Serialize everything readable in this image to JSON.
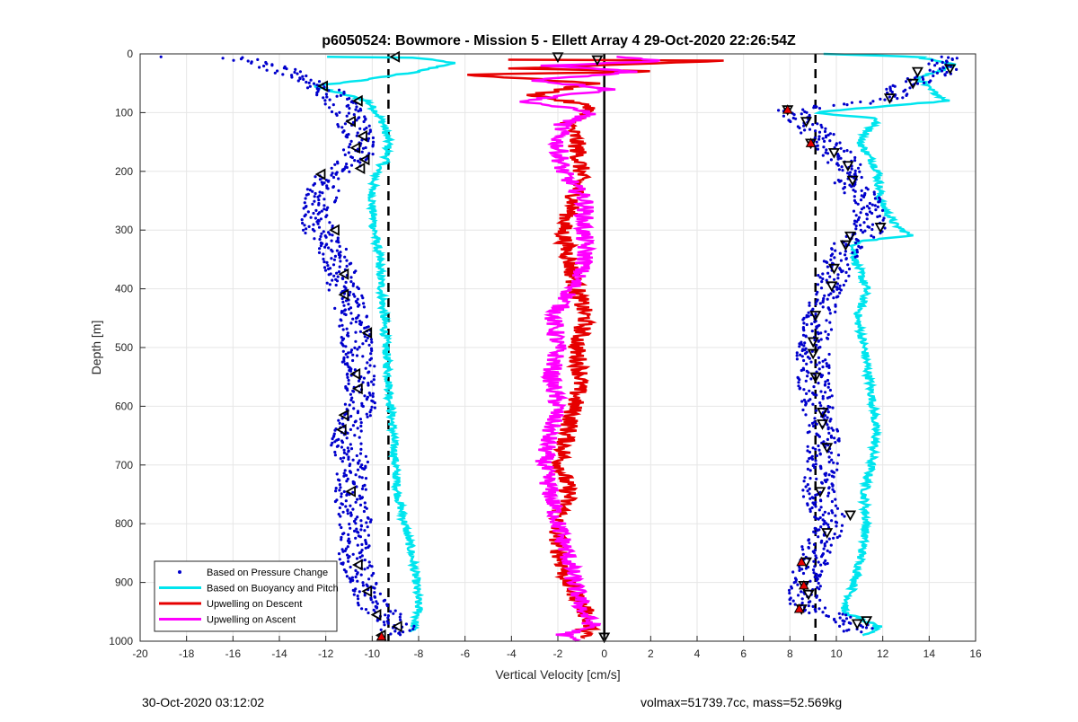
{
  "chart_data": {
    "type": "scatter",
    "title": "p6050524: Bowmore - Mission 5 - Ellett Array 4 29-Oct-2020 22:26:54Z",
    "xlabel": "Vertical Velocity [cm/s]",
    "ylabel": "Depth [m]",
    "xlim": [
      -20,
      16
    ],
    "ylim": [
      1000,
      0
    ],
    "y_reversed": true,
    "grid": true,
    "legend_position": "bottom-left",
    "xticks": [
      -20,
      -18,
      -16,
      -14,
      -12,
      -10,
      -8,
      -6,
      -4,
      -2,
      0,
      2,
      4,
      6,
      8,
      10,
      12,
      14,
      16
    ],
    "yticks": [
      0,
      100,
      200,
      300,
      400,
      500,
      600,
      700,
      800,
      900,
      1000
    ],
    "reference_lines": [
      {
        "style": "dashed",
        "x": -9.3
      },
      {
        "style": "solid",
        "x": 0
      },
      {
        "style": "dashed",
        "x": 9.1
      }
    ],
    "series": [
      {
        "name": "Based on Pressure Change",
        "color": "#0000CC",
        "marker": "dot",
        "descent": [
          [
            -19.5,
            5
          ],
          [
            -16,
            5
          ],
          [
            -14.5,
            20
          ],
          [
            -13,
            40
          ],
          [
            -12,
            60
          ],
          [
            -11.2,
            90
          ],
          [
            -10.8,
            120
          ],
          [
            -10.6,
            150
          ],
          [
            -10.7,
            180
          ],
          [
            -12,
            210
          ],
          [
            -12.2,
            250
          ],
          [
            -12.4,
            300
          ],
          [
            -11.5,
            350
          ],
          [
            -11.2,
            400
          ],
          [
            -10.8,
            450
          ],
          [
            -10.6,
            500
          ],
          [
            -10.6,
            550
          ],
          [
            -10.5,
            600
          ],
          [
            -11.2,
            650
          ],
          [
            -10.8,
            700
          ],
          [
            -11.0,
            750
          ],
          [
            -10.7,
            800
          ],
          [
            -10.8,
            850
          ],
          [
            -10.5,
            900
          ],
          [
            -10.0,
            940
          ],
          [
            -8.7,
            975
          ],
          [
            -9.5,
            990
          ]
        ],
        "ascent": [
          [
            14.5,
            5
          ],
          [
            14.8,
            25
          ],
          [
            13.2,
            50
          ],
          [
            12.0,
            80
          ],
          [
            8,
            95
          ],
          [
            8.8,
            120
          ],
          [
            9.5,
            150
          ],
          [
            10.0,
            170
          ],
          [
            10.4,
            190
          ],
          [
            10.6,
            220
          ],
          [
            11.3,
            250
          ],
          [
            11.5,
            300
          ],
          [
            10.6,
            320
          ],
          [
            10.0,
            360
          ],
          [
            9.8,
            400
          ],
          [
            9.2,
            450
          ],
          [
            9.0,
            500
          ],
          [
            9.0,
            550
          ],
          [
            9.2,
            600
          ],
          [
            9.5,
            650
          ],
          [
            9.4,
            700
          ],
          [
            9.2,
            750
          ],
          [
            9.8,
            800
          ],
          [
            9.3,
            830
          ],
          [
            8.9,
            870
          ],
          [
            8.7,
            900
          ],
          [
            8.6,
            940
          ],
          [
            10.8,
            970
          ],
          [
            10.9,
            985
          ]
        ]
      },
      {
        "name": "Based on Buoyancy and Pitch",
        "color": "#00E5EE",
        "marker": "line",
        "descent": [
          [
            -12.0,
            5
          ],
          [
            -8.5,
            5
          ],
          [
            -6.5,
            15
          ],
          [
            -8,
            30
          ],
          [
            -10.5,
            45
          ],
          [
            -12.5,
            55
          ],
          [
            -10.2,
            80
          ],
          [
            -9.8,
            100
          ],
          [
            -9.5,
            120
          ],
          [
            -9.3,
            150
          ],
          [
            -9.4,
            180
          ],
          [
            -9.8,
            200
          ],
          [
            -10.0,
            230
          ],
          [
            -10.0,
            260
          ],
          [
            -9.9,
            300
          ],
          [
            -9.7,
            350
          ],
          [
            -9.6,
            400
          ],
          [
            -9.5,
            450
          ],
          [
            -9.4,
            500
          ],
          [
            -9.3,
            550
          ],
          [
            -9.2,
            600
          ],
          [
            -9.1,
            650
          ],
          [
            -9.0,
            700
          ],
          [
            -8.9,
            750
          ],
          [
            -8.6,
            800
          ],
          [
            -8.3,
            850
          ],
          [
            -8.1,
            900
          ],
          [
            -8.0,
            950
          ],
          [
            -8.3,
            985
          ],
          [
            12.5,
            985
          ]
        ],
        "ascent": [
          [
            9.5,
            0
          ],
          [
            13.5,
            5
          ],
          [
            15.2,
            20
          ],
          [
            13.5,
            40
          ],
          [
            14.0,
            60
          ],
          [
            14.8,
            80
          ],
          [
            9.0,
            100
          ],
          [
            11.8,
            110
          ],
          [
            11.0,
            150
          ],
          [
            11.5,
            180
          ],
          [
            11.8,
            200
          ],
          [
            11.9,
            250
          ],
          [
            12.5,
            290
          ],
          [
            13.2,
            310
          ],
          [
            10.8,
            320
          ],
          [
            10.8,
            350
          ],
          [
            11.3,
            400
          ],
          [
            10.9,
            450
          ],
          [
            11.2,
            500
          ],
          [
            11.4,
            550
          ],
          [
            11.6,
            600
          ],
          [
            11.7,
            650
          ],
          [
            11.5,
            700
          ],
          [
            11.2,
            750
          ],
          [
            11.3,
            800
          ],
          [
            11.1,
            850
          ],
          [
            10.8,
            900
          ],
          [
            10.3,
            950
          ],
          [
            11.8,
            975
          ],
          [
            11.2,
            990
          ]
        ]
      },
      {
        "name": "Upwelling on Descent",
        "color": "#E60000",
        "marker": "line",
        "values": [
          [
            -4.5,
            10
          ],
          [
            6.5,
            10
          ],
          [
            -4,
            25
          ],
          [
            3,
            30
          ],
          [
            -6,
            35
          ],
          [
            -0.5,
            50
          ],
          [
            -3,
            70
          ],
          [
            -0.5,
            90
          ],
          [
            -1.5,
            120
          ],
          [
            -1.2,
            150
          ],
          [
            -1.0,
            200
          ],
          [
            -1.3,
            250
          ],
          [
            -1.8,
            300
          ],
          [
            -1.5,
            350
          ],
          [
            -1.2,
            400
          ],
          [
            -0.8,
            450
          ],
          [
            -1.2,
            500
          ],
          [
            -1.0,
            550
          ],
          [
            -1.3,
            600
          ],
          [
            -1.6,
            650
          ],
          [
            -1.9,
            700
          ],
          [
            -1.5,
            750
          ],
          [
            -2.1,
            800
          ],
          [
            -1.9,
            850
          ],
          [
            -1.6,
            900
          ],
          [
            -0.9,
            940
          ],
          [
            -0.6,
            975
          ],
          [
            -1.0,
            995
          ],
          [
            1.4,
            995
          ]
        ]
      },
      {
        "name": "Upwelling on Ascent",
        "color": "#FF00FF",
        "marker": "line",
        "values": [
          [
            0.5,
            5
          ],
          [
            2.5,
            12
          ],
          [
            -2.5,
            20
          ],
          [
            1.5,
            30
          ],
          [
            -3,
            45
          ],
          [
            0.5,
            60
          ],
          [
            -3.5,
            80
          ],
          [
            -0.5,
            100
          ],
          [
            -1.8,
            120
          ],
          [
            -2.0,
            150
          ],
          [
            -1.8,
            200
          ],
          [
            -0.8,
            250
          ],
          [
            -0.9,
            300
          ],
          [
            -0.8,
            350
          ],
          [
            -1.4,
            400
          ],
          [
            -2.2,
            450
          ],
          [
            -2.0,
            500
          ],
          [
            -2.3,
            550
          ],
          [
            -2.0,
            600
          ],
          [
            -2.4,
            650
          ],
          [
            -2.6,
            700
          ],
          [
            -2.3,
            750
          ],
          [
            -2.0,
            800
          ],
          [
            -1.6,
            850
          ],
          [
            -1.3,
            900
          ],
          [
            -0.9,
            950
          ],
          [
            -0.5,
            975
          ],
          [
            -1.8,
            990
          ],
          [
            -1.2,
            1000
          ]
        ]
      }
    ],
    "triangle_markers": {
      "descent_left": [
        [
          -9.0,
          5
        ],
        [
          -12.1,
          55
        ],
        [
          -10.6,
          80
        ],
        [
          -10.9,
          115
        ],
        [
          -10.4,
          140
        ],
        [
          -10.7,
          160
        ],
        [
          -10.3,
          180
        ],
        [
          -10.5,
          195
        ],
        [
          -12.2,
          205
        ],
        [
          -11.6,
          300
        ],
        [
          -11.2,
          375
        ],
        [
          -11.2,
          410
        ],
        [
          -10.2,
          475
        ],
        [
          -10.7,
          545
        ],
        [
          -10.6,
          570
        ],
        [
          -11.2,
          615
        ],
        [
          -11.3,
          640
        ],
        [
          -10.9,
          745
        ],
        [
          -10.6,
          870
        ],
        [
          -10.2,
          915
        ],
        [
          -9.8,
          955
        ],
        [
          -8.9,
          975
        ],
        [
          -9.6,
          990
        ]
      ],
      "ascent_right": [
        [
          -2.0,
          5
        ],
        [
          -0.3,
          10
        ],
        [
          14.9,
          25
        ],
        [
          13.5,
          30
        ],
        [
          13.3,
          50
        ],
        [
          12.3,
          75
        ],
        [
          7.9,
          95
        ],
        [
          8.7,
          115
        ],
        [
          8.9,
          152
        ],
        [
          9.9,
          168
        ],
        [
          10.5,
          190
        ],
        [
          10.7,
          215
        ],
        [
          11.9,
          295
        ],
        [
          10.6,
          310
        ],
        [
          10.4,
          325
        ],
        [
          9.9,
          365
        ],
        [
          9.8,
          395
        ],
        [
          9.1,
          445
        ],
        [
          9.0,
          490
        ],
        [
          9.0,
          510
        ],
        [
          9.1,
          550
        ],
        [
          9.4,
          610
        ],
        [
          9.4,
          630
        ],
        [
          9.6,
          670
        ],
        [
          9.3,
          745
        ],
        [
          10.6,
          785
        ],
        [
          9.6,
          815
        ],
        [
          8.7,
          865
        ],
        [
          8.6,
          905
        ],
        [
          8.8,
          920
        ],
        [
          8.5,
          945
        ],
        [
          11.3,
          965
        ],
        [
          10.9,
          970
        ],
        [
          0,
          993
        ]
      ]
    },
    "legend": [
      {
        "label": "Based on Pressure Change",
        "color": "#0000CC",
        "style": "dot"
      },
      {
        "label": "Based on Buoyancy and Pitch",
        "color": "#00E5EE",
        "style": "line"
      },
      {
        "label": "Upwelling on Descent",
        "color": "#E60000",
        "style": "line"
      },
      {
        "label": "Upwelling on Ascent",
        "color": "#FF00FF",
        "style": "line"
      }
    ]
  },
  "footer": {
    "timestamp": "30-Oct-2020 03:12:02",
    "stats": "volmax=51739.7cc, mass=52.569kg"
  }
}
